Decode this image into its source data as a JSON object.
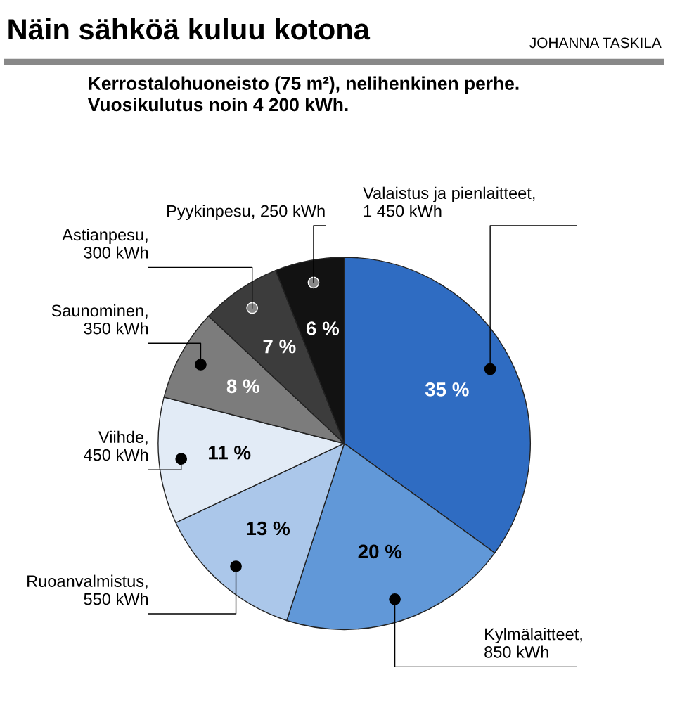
{
  "chart_data": {
    "type": "pie",
    "title": "Näin sähköä kuluu kotona",
    "subtitle": "Kerrostalohuoneisto (75 m²), nelihenkinen perhe.\nVuosikulutus noin 4 200 kWh.",
    "annotations": [
      "JOHANNA TASKILA"
    ],
    "categories": [
      "Valaistus ja pienlaitteet,\n1 450 kWh",
      "Kylmälaitteet,\n850 kWh",
      "Ruoanvalmistus,\n550 kWh",
      "Viihde,\n450 kWh",
      "Saunominen,\n350 kWh",
      "Astianpesu,\n300 kWh",
      "Pyykinpesu, 250 kWh"
    ],
    "values": [
      35,
      20,
      13,
      11,
      8,
      7,
      6
    ],
    "value_labels": [
      "35 %",
      "20 %",
      "13 %",
      "11 %",
      "8 %",
      "7 %",
      "6 %"
    ],
    "colors": [
      "#2f6cc2",
      "#6198d8",
      "#abc7ea",
      "#e2ebf6",
      "#7c7c7c",
      "#3c3c3c",
      "#121212"
    ],
    "legend": false
  }
}
